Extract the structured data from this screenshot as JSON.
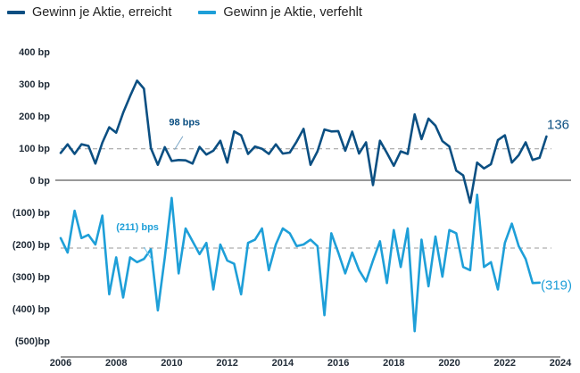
{
  "chart_data": {
    "type": "line",
    "title": "",
    "xlabel": "",
    "ylabel": "",
    "xlim": [
      2006,
      2024
    ],
    "ylim": [
      -500,
      400
    ],
    "grid": false,
    "legend_position": "top-left",
    "x_ticks": [
      "2006",
      "2008",
      "2010",
      "2012",
      "2014",
      "2016",
      "2018",
      "2020",
      "2022",
      "2024"
    ],
    "y_ticks": [
      {
        "value": 400,
        "label": "400 bp"
      },
      {
        "value": 300,
        "label": "300 bp"
      },
      {
        "value": 200,
        "label": "200 bp"
      },
      {
        "value": 100,
        "label": "100 bp"
      },
      {
        "value": 0,
        "label": "0 bp"
      },
      {
        "value": -100,
        "label": "(100) bp"
      },
      {
        "value": -200,
        "label": "(200) bp"
      },
      {
        "value": -300,
        "label": "(300) bp"
      },
      {
        "value": -400,
        "label": "(400) bp"
      },
      {
        "value": -500,
        "label": "(500)bp"
      }
    ],
    "series": [
      {
        "name": "Gewinn je Aktie, erreicht",
        "color": "#0b4f82",
        "x_start": 2006.0,
        "x_step": 0.25,
        "values": [
          85,
          112,
          82,
          112,
          107,
          52,
          117,
          165,
          148,
          210,
          262,
          310,
          285,
          100,
          48,
          103,
          60,
          63,
          62,
          52,
          104,
          80,
          92,
          123,
          55,
          152,
          140,
          82,
          105,
          98,
          82,
          112,
          83,
          86,
          120,
          160,
          48,
          90,
          158,
          152,
          153,
          92,
          152,
          83,
          118,
          -15,
          123,
          85,
          45,
          90,
          82,
          205,
          128,
          192,
          170,
          122,
          105,
          30,
          15,
          -70,
          55,
          37,
          50,
          125,
          140,
          55,
          78,
          118,
          63,
          70,
          136
        ],
        "reference": {
          "value": 98,
          "label": "98 bps"
        },
        "last_label": "136"
      },
      {
        "name": "Gewinn je Aktie, verfehlt",
        "color": "#1e9fd8",
        "x_start": 2006.0,
        "x_step": 0.25,
        "values": [
          -180,
          -225,
          -95,
          -180,
          -170,
          -200,
          -110,
          -355,
          -240,
          -365,
          -240,
          -255,
          -245,
          -215,
          -405,
          -240,
          -55,
          -290,
          -150,
          -190,
          -230,
          -195,
          -340,
          -200,
          -250,
          -260,
          -355,
          -195,
          -185,
          -150,
          -280,
          -200,
          -150,
          -165,
          -205,
          -200,
          -185,
          -205,
          -420,
          -165,
          -225,
          -290,
          -225,
          -280,
          -315,
          -250,
          -190,
          -320,
          -155,
          -270,
          -150,
          -470,
          -185,
          -330,
          -175,
          -300,
          -155,
          -165,
          -270,
          -280,
          -45,
          -270,
          -255,
          -340,
          -195,
          -135,
          -205,
          -245,
          -320,
          -319
        ],
        "reference": {
          "value": -211,
          "label": "(211) bps"
        },
        "last_label": "(319)"
      }
    ]
  }
}
